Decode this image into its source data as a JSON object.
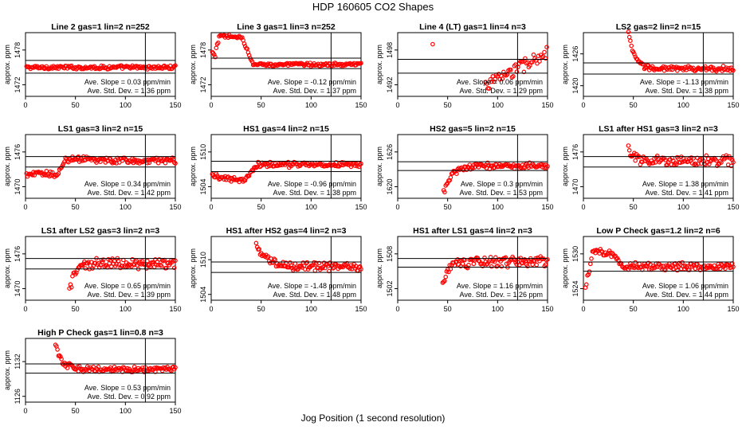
{
  "title": "HDP  160605  CO2 Shapes",
  "x_axis_title": "Jog Position (1 second resolution)",
  "y_axis_label": "approx. ppm",
  "slope_label": "Ave. Slope =",
  "slope_unit": "ppm/min",
  "sd_label": "Ave. Std. Dev. =",
  "sd_unit": "ppm",
  "colors": {
    "points": "#ff0000",
    "axis": "#000000",
    "background": "#ffffff"
  },
  "chart_data": [
    {
      "type": "scatter",
      "title": "Line 2 gas=1 lin=2 n=252",
      "xlim": [
        0,
        150
      ],
      "ylim": [
        1470,
        1481
      ],
      "yticks": [
        1472,
        1478
      ],
      "xticks": [
        0,
        50,
        100,
        150
      ],
      "hlines": [
        1476.2,
        1474.0
      ],
      "vline": 120,
      "slope": "0.03",
      "sd": "1.36",
      "shape": {
        "start": 1,
        "end": 150,
        "base": 1475.0,
        "noise": 0.25
      }
    },
    {
      "type": "scatter",
      "title": "Line 3 gas=1 lin=3 n=252",
      "xlim": [
        0,
        150
      ],
      "ylim": [
        1470,
        1481
      ],
      "yticks": [
        1472,
        1478
      ],
      "xticks": [
        0,
        50,
        100,
        150
      ],
      "hlines": [
        1476.6,
        1474.8
      ],
      "vline": 120,
      "slope": "-0.12",
      "sd": "1.37",
      "shape": {
        "start": 1,
        "end": 150,
        "base": 1475.5,
        "noise": 0.25,
        "kind": "bump",
        "hi": 1480.3,
        "plateau": 30,
        "fall": 42
      }
    },
    {
      "type": "scatter",
      "title": "Line 4 (LT) gas=1 lin=4 n=3",
      "xlim": [
        0,
        150
      ],
      "ylim": [
        1490,
        1501
      ],
      "yticks": [
        1492,
        1498
      ],
      "xticks": [
        0,
        50,
        100,
        150
      ],
      "hlines": [
        1496.4,
        1494.0
      ],
      "vline": 120,
      "slope": "0.06",
      "sd": "1.29",
      "shape": {
        "start": 88,
        "end": 150,
        "base": 1492.0,
        "noise": 1.0,
        "kind": "rise",
        "to": 1497.5
      },
      "outlier": [
        35,
        1499
      ]
    },
    {
      "type": "scatter",
      "title": "LS2 gas=2 lin=2 n=15",
      "xlim": [
        0,
        150
      ],
      "ylim": [
        1418,
        1430
      ],
      "yticks": [
        1420,
        1426
      ],
      "xticks": [
        0,
        50,
        100,
        150
      ],
      "hlines": [
        1424.3,
        1422.2
      ],
      "vline": 120,
      "slope": "-1.13",
      "sd": "1.38",
      "shape": {
        "start": 45,
        "end": 150,
        "base": 1423.2,
        "noise": 0.4,
        "kind": "decay",
        "from": 1430,
        "tau": 6
      }
    },
    {
      "type": "scatter",
      "title": "LS1 gas=3 lin=2 n=15",
      "xlim": [
        0,
        150
      ],
      "ylim": [
        1468,
        1479
      ],
      "yticks": [
        1470,
        1476
      ],
      "xticks": [
        0,
        50,
        100,
        150
      ],
      "hlines": [
        1475.2,
        1473.4
      ],
      "vline": 120,
      "slope": "0.34",
      "sd": "1.42",
      "shape": {
        "start": 1,
        "end": 150,
        "base": 1474.5,
        "noise": 0.4,
        "kind": "step",
        "lo": 1472.2,
        "stepAt": 40
      }
    },
    {
      "type": "scatter",
      "title": "HS1 gas=4 lin=2 n=15",
      "xlim": [
        0,
        150
      ],
      "ylim": [
        1502,
        1513
      ],
      "yticks": [
        1504,
        1510
      ],
      "xticks": [
        0,
        50,
        100,
        150
      ],
      "hlines": [
        1508.4,
        1506.6
      ],
      "vline": 120,
      "slope": "-0.96",
      "sd": "1.38",
      "shape": {
        "start": 1,
        "end": 150,
        "base": 1507.8,
        "noise": 0.35,
        "kind": "dipstep",
        "lo": 1505.2,
        "stepAt": 40
      }
    },
    {
      "type": "scatter",
      "title": "HS2 gas=5 lin=2 n=15",
      "xlim": [
        0,
        150
      ],
      "ylim": [
        1618,
        1629
      ],
      "yticks": [
        1620,
        1626
      ],
      "xticks": [
        0,
        50,
        100,
        150
      ],
      "hlines": [
        1624.3,
        1622.8
      ],
      "vline": 120,
      "slope": "0.3",
      "sd": "1.53",
      "shape": {
        "start": 46,
        "end": 150,
        "base": 1623.6,
        "noise": 0.4,
        "kind": "rise2",
        "from": 1619,
        "tau": 8
      }
    },
    {
      "type": "scatter",
      "title": "LS1 after HS1 gas=3 lin=2 n=3",
      "xlim": [
        0,
        150
      ],
      "ylim": [
        1468,
        1479
      ],
      "yticks": [
        1470,
        1476
      ],
      "xticks": [
        0,
        50,
        100,
        150
      ],
      "hlines": [
        1475.2,
        1473.4
      ],
      "vline": 120,
      "slope": "1.38",
      "sd": "1.41",
      "shape": {
        "start": 45,
        "end": 150,
        "base": 1474.5,
        "noise": 0.7,
        "kind": "decay",
        "from": 1476.5,
        "tau": 5
      }
    },
    {
      "type": "scatter",
      "title": "LS1 after LS2 gas=3 lin=2 n=3",
      "xlim": [
        0,
        150
      ],
      "ylim": [
        1468,
        1479
      ],
      "yticks": [
        1470,
        1476
      ],
      "xticks": [
        0,
        50,
        100,
        150
      ],
      "hlines": [
        1475.2,
        1473.4
      ],
      "vline": 120,
      "slope": "0.65",
      "sd": "1.39",
      "shape": {
        "start": 44,
        "end": 150,
        "base": 1474.4,
        "noise": 0.75,
        "kind": "rise2",
        "from": 1469.5,
        "tau": 6
      }
    },
    {
      "type": "scatter",
      "title": "HS1 after HS2 gas=4 lin=2 n=3",
      "xlim": [
        0,
        150
      ],
      "ylim": [
        1503,
        1514
      ],
      "yticks": [
        1504,
        1510
      ],
      "xticks": [
        0,
        50,
        100,
        150
      ],
      "hlines": [
        1509.6,
        1507.8
      ],
      "vline": 120,
      "slope": "-1.48",
      "sd": "1.48",
      "shape": {
        "start": 45,
        "end": 150,
        "base": 1508.8,
        "noise": 0.6,
        "kind": "decay",
        "from": 1512.5,
        "tau": 10
      }
    },
    {
      "type": "scatter",
      "title": "HS1 after LS1 gas=4 lin=2 n=3",
      "xlim": [
        0,
        150
      ],
      "ylim": [
        1500,
        1511
      ],
      "yticks": [
        1502,
        1508
      ],
      "xticks": [
        0,
        50,
        100,
        150
      ],
      "hlines": [
        1507.2,
        1505.7
      ],
      "vline": 120,
      "slope": "1.16",
      "sd": "1.26",
      "shape": {
        "start": 45,
        "end": 150,
        "base": 1506.6,
        "noise": 0.7,
        "kind": "rise2",
        "from": 1502,
        "tau": 5
      }
    },
    {
      "type": "scatter",
      "title": "Low P Check gas=1.2 lin=2 n=6",
      "xlim": [
        0,
        150
      ],
      "ylim": [
        1522,
        1533
      ],
      "yticks": [
        1524,
        1530
      ],
      "xticks": [
        0,
        50,
        100,
        150
      ],
      "hlines": [
        1528.6,
        1527.0
      ],
      "vline": 120,
      "slope": "1.06",
      "sd": "1.44",
      "shape": {
        "start": 2,
        "end": 150,
        "base": 1527.8,
        "noise": 0.5,
        "kind": "lowp",
        "from": 1524.5,
        "peak": 1530.5
      }
    },
    {
      "type": "scatter",
      "title": "High P Check gas=1 lin=0.8 n=3",
      "xlim": [
        0,
        150
      ],
      "ylim": [
        1125,
        1136
      ],
      "yticks": [
        1126,
        1132
      ],
      "xticks": [
        0,
        50,
        100,
        150
      ],
      "hlines": [
        1131.6,
        1130.0
      ],
      "vline": 120,
      "slope": "0.53",
      "sd": "0.92",
      "shape": {
        "start": 30,
        "end": 150,
        "base": 1130.7,
        "noise": 0.4,
        "kind": "decay",
        "from": 1135.2,
        "tau": 6
      }
    }
  ]
}
